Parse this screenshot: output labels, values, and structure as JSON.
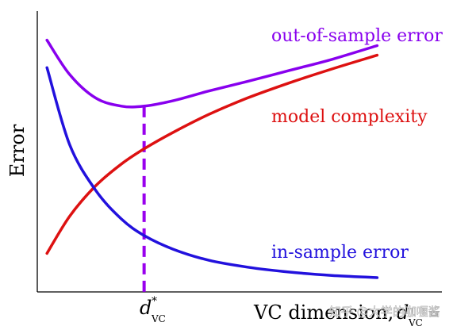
{
  "chart_data": {
    "type": "line",
    "title": "",
    "xlabel": "VC dimension, d_VC",
    "xlabel_text": "VC dimension, ",
    "xlabel_symbol": "d",
    "xlabel_sub": "VC",
    "ylabel": "Error",
    "xtick": {
      "symbol": "d",
      "sup": "*",
      "sub": "VC"
    },
    "x_range": [
      0,
      10
    ],
    "y_range": [
      0,
      10
    ],
    "grid": false,
    "series": [
      {
        "name": "out-of-sample error",
        "color": "#8800ee",
        "x": [
          0.3,
          1.0,
          1.8,
          2.6,
          3.3,
          4.2,
          5.3,
          6.5,
          7.8,
          9.1,
          10.5
        ],
        "y": [
          9.15,
          7.9,
          7.05,
          6.75,
          6.75,
          6.95,
          7.3,
          7.65,
          8.05,
          8.45,
          8.95
        ]
      },
      {
        "name": "model complexity",
        "color": "#dd1111",
        "x": [
          0.3,
          1.0,
          1.8,
          2.6,
          3.3,
          4.2,
          5.3,
          6.5,
          7.8,
          9.1,
          10.5
        ],
        "y": [
          1.4,
          2.75,
          3.85,
          4.65,
          5.2,
          5.8,
          6.45,
          7.05,
          7.6,
          8.1,
          8.6
        ]
      },
      {
        "name": "in-sample error",
        "color": "#2211dd",
        "x": [
          0.3,
          1.0,
          1.8,
          2.6,
          3.3,
          4.2,
          5.3,
          6.5,
          7.8,
          9.1,
          10.5
        ],
        "y": [
          8.15,
          5.35,
          3.7,
          2.65,
          2.05,
          1.55,
          1.15,
          0.9,
          0.72,
          0.6,
          0.52
        ]
      }
    ],
    "optimum": {
      "x": 3.3,
      "y": 6.75,
      "color": "#9900ee"
    },
    "watermark": "知乎 @大学的咖喱酱"
  }
}
